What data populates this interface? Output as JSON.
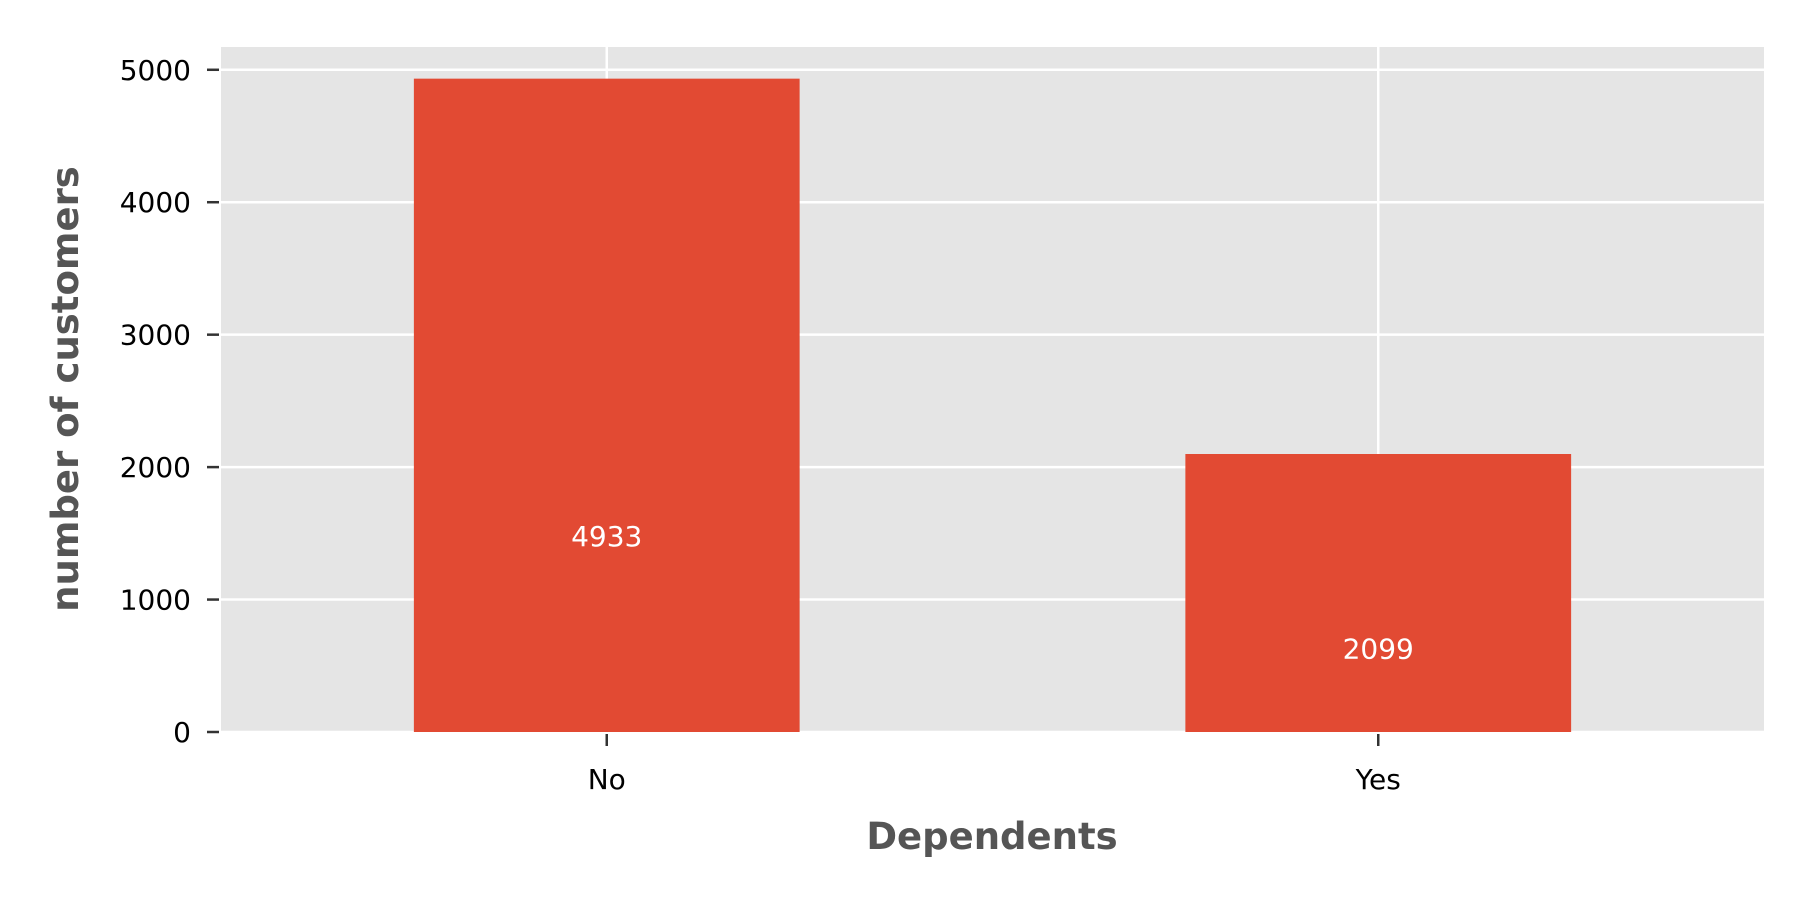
{
  "chart_data": {
    "type": "bar",
    "title": "",
    "xlabel": "Dependents",
    "ylabel": "number of customers",
    "categories": [
      "No",
      "Yes"
    ],
    "values": [
      4933,
      2099
    ],
    "data_labels": [
      "4933",
      "2099"
    ],
    "ylim": [
      0,
      5172
    ],
    "yticks": [
      0,
      1000,
      2000,
      3000,
      4000,
      5000
    ],
    "ytick_labels": [
      "0",
      "1000",
      "2000",
      "3000",
      "4000",
      "5000"
    ],
    "grid": true,
    "legend": "none",
    "colors": {
      "bar": "#E24A33",
      "plot_background": "#E5E5E5",
      "grid": "#FFFFFF",
      "axis_title": "#555555",
      "bar_label": "#FFFFFF"
    }
  }
}
